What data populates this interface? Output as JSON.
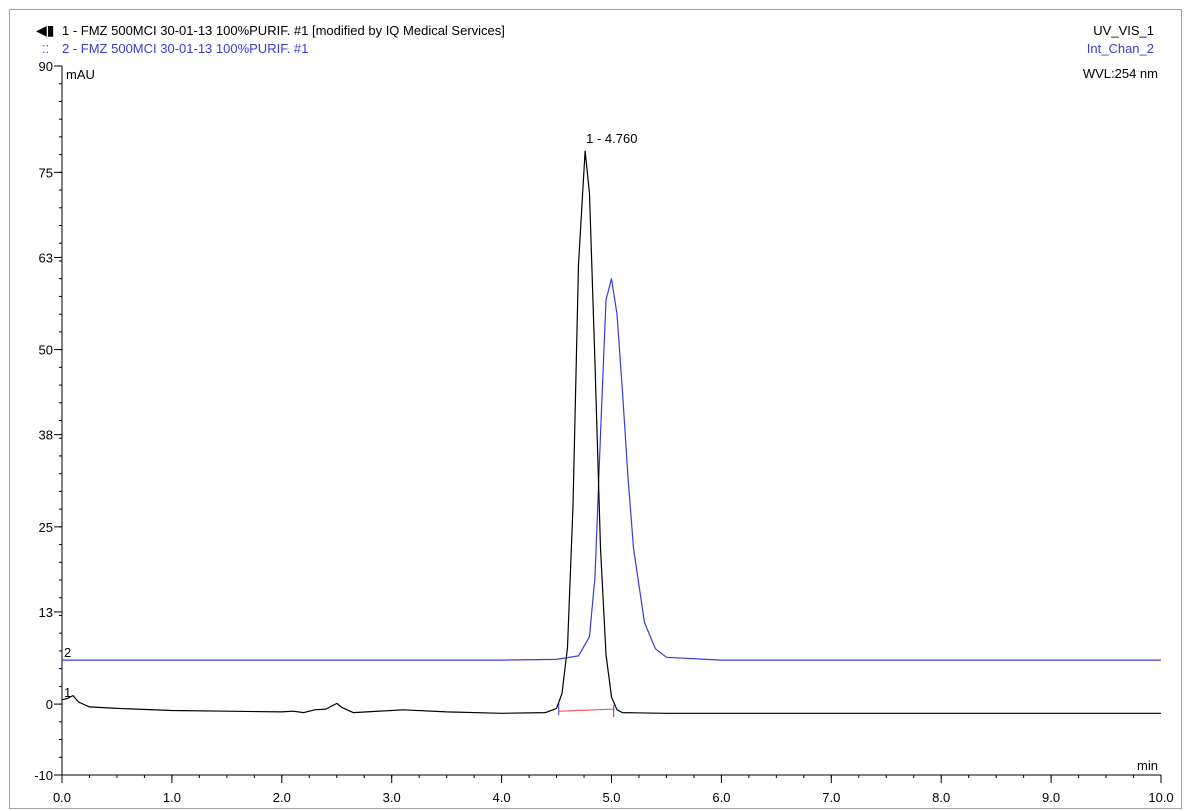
{
  "header": {
    "trace1_title": "1 - FMZ 500MCI 30-01-13 100%PURIF. #1 [modified by IQ Medical Services]",
    "trace2_title": "2 - FMZ 500MCI 30-01-13 100%PURIF. #1",
    "trace1_channel": "UV_VIS_1",
    "trace2_channel": "Int_Chan_2",
    "wavelength": "WVL:254 nm"
  },
  "colors": {
    "trace1": "#000000",
    "trace2": "#3a3ad8",
    "baseline": "#ff4040",
    "frame": "#a0a0a0"
  },
  "chart_data": {
    "type": "line",
    "xlabel": "min",
    "ylabel": "mAU",
    "xlim": [
      0,
      10
    ],
    "ylim": [
      -10,
      90
    ],
    "x_ticks": [
      0,
      1,
      2,
      3,
      4,
      5,
      6,
      7,
      8,
      9,
      10
    ],
    "x_tick_labels": [
      "0.0",
      "1.0",
      "2.0",
      "3.0",
      "4.0",
      "5.0",
      "6.0",
      "7.0",
      "8.0",
      "9.0",
      "10.0"
    ],
    "y_ticks": [
      -10,
      0,
      13,
      25,
      38,
      50,
      63,
      75,
      90
    ],
    "y_tick_labels": [
      "-10",
      "0",
      "13",
      "25",
      "38",
      "50",
      "63",
      "75",
      "90"
    ],
    "series": [
      {
        "name": "1 - FMZ 500MCI 30-01-13 100%PURIF. #1 [modified by IQ Medical Services]",
        "label": "1",
        "x": [
          0.0,
          0.05,
          0.1,
          0.15,
          0.25,
          0.5,
          1.0,
          1.5,
          2.0,
          2.1,
          2.2,
          2.3,
          2.4,
          2.5,
          2.55,
          2.65,
          3.0,
          3.1,
          3.5,
          4.0,
          4.4,
          4.5,
          4.55,
          4.6,
          4.65,
          4.7,
          4.76,
          4.8,
          4.85,
          4.9,
          4.95,
          5.0,
          5.05,
          5.1,
          5.5,
          6.0,
          7.0,
          8.0,
          9.0,
          10.0
        ],
        "y": [
          0.6,
          0.8,
          1.2,
          0.3,
          -0.4,
          -0.6,
          -0.9,
          -1.0,
          -1.1,
          -1.0,
          -1.2,
          -0.8,
          -0.7,
          0.1,
          -0.5,
          -1.2,
          -0.9,
          -0.8,
          -1.1,
          -1.3,
          -1.2,
          -0.6,
          1.5,
          8.0,
          28.0,
          62.0,
          78.0,
          72.0,
          48.0,
          22.0,
          7.0,
          1.0,
          -0.8,
          -1.2,
          -1.3,
          -1.3,
          -1.3,
          -1.3,
          -1.3,
          -1.3
        ]
      },
      {
        "name": "2 - FMZ 500MCI 30-01-13 100%PURIF. #1",
        "label": "2",
        "x": [
          0.0,
          1.0,
          2.0,
          3.0,
          4.0,
          4.5,
          4.7,
          4.8,
          4.85,
          4.9,
          4.95,
          5.0,
          5.05,
          5.1,
          5.15,
          5.2,
          5.3,
          5.4,
          5.5,
          6.0,
          7.0,
          8.0,
          9.0,
          10.0
        ],
        "y": [
          6.2,
          6.2,
          6.2,
          6.2,
          6.2,
          6.3,
          6.8,
          9.5,
          18.0,
          38.0,
          57.0,
          60.0,
          55.0,
          44.0,
          32.0,
          22.0,
          11.5,
          7.8,
          6.6,
          6.2,
          6.2,
          6.2,
          6.2,
          6.2
        ]
      }
    ],
    "annotations": [
      {
        "text": "1 - 4.760",
        "x": 4.76,
        "y": 78.0
      }
    ],
    "integration_baseline": {
      "x": [
        4.52,
        5.02
      ],
      "y": [
        -1.0,
        -0.7
      ]
    }
  }
}
